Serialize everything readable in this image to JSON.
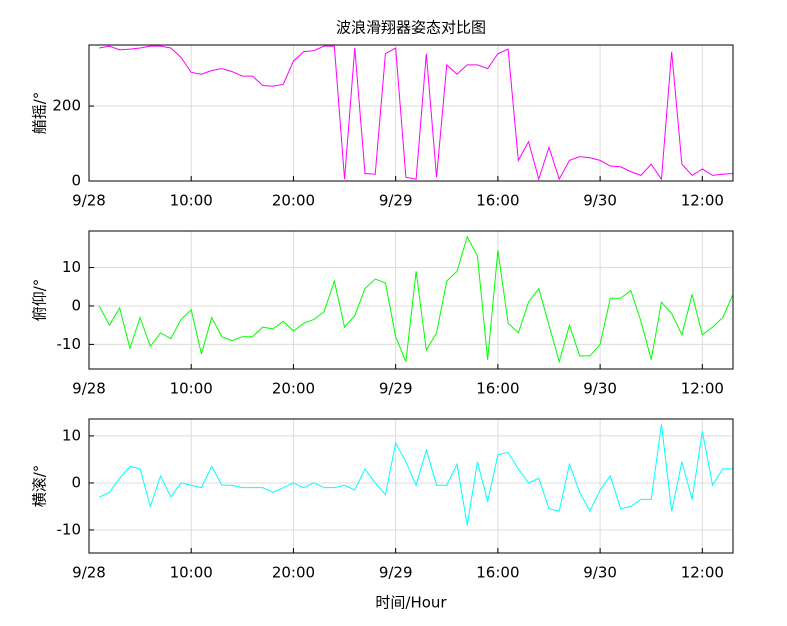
{
  "chart_data": [
    {
      "type": "line",
      "title": "波浪滑翔器姿态对比图",
      "ylabel": "艏摇/°",
      "color": "#ff00ff",
      "grid": true,
      "x": [
        1,
        2,
        3,
        4,
        5,
        6,
        7,
        8,
        9,
        10,
        11,
        12,
        13,
        14,
        15,
        16,
        17,
        18,
        19,
        20,
        21,
        22,
        23,
        24,
        25,
        26,
        27,
        28,
        29,
        30,
        31,
        32,
        33,
        34,
        35,
        36,
        37,
        38,
        39,
        40,
        41,
        42,
        43,
        44,
        45,
        46,
        47,
        48,
        49,
        50,
        51,
        52,
        53,
        54,
        55,
        56,
        57,
        58,
        59,
        60,
        61,
        62,
        63
      ],
      "values": [
        355,
        360,
        350,
        352,
        355,
        360,
        360,
        355,
        330,
        290,
        285,
        295,
        300,
        292,
        280,
        280,
        255,
        253,
        258,
        320,
        345,
        348,
        360,
        360,
        5,
        355,
        20,
        18,
        340,
        355,
        10,
        5,
        340,
        10,
        310,
        285,
        310,
        310,
        300,
        340,
        352,
        55,
        105,
        5,
        90,
        5,
        55,
        65,
        62,
        55,
        40,
        38,
        25,
        15,
        45,
        5,
        345,
        45,
        15,
        32,
        15,
        18,
        20
      ],
      "xlim": [
        0,
        63
      ],
      "xticks": [
        {
          "value": 0,
          "label": "9/28"
        },
        {
          "value": 10,
          "label": "10:00"
        },
        {
          "value": 20,
          "label": "20:00"
        },
        {
          "value": 30,
          "label": "9/29"
        },
        {
          "value": 40,
          "label": "16:00"
        },
        {
          "value": 50,
          "label": "9/30"
        },
        {
          "value": 60,
          "label": "12:00"
        }
      ],
      "ylim": [
        0,
        363
      ],
      "yticks": [
        0,
        200
      ]
    },
    {
      "type": "line",
      "ylabel": "俯仰/°",
      "color": "#00ff00",
      "grid": true,
      "x": [
        1,
        2,
        3,
        4,
        5,
        6,
        7,
        8,
        9,
        10,
        11,
        12,
        13,
        14,
        15,
        16,
        17,
        18,
        19,
        20,
        21,
        22,
        23,
        24,
        25,
        26,
        27,
        28,
        29,
        30,
        31,
        32,
        33,
        34,
        35,
        36,
        37,
        38,
        39,
        40,
        41,
        42,
        43,
        44,
        45,
        46,
        47,
        48,
        49,
        50,
        51,
        52,
        53,
        54,
        55,
        56,
        57,
        58,
        59,
        60,
        61,
        62,
        63
      ],
      "values": [
        0,
        -5,
        -0.5,
        -11,
        -3,
        -10.5,
        -7,
        -8.5,
        -3.5,
        -1,
        -12.5,
        -3,
        -8,
        -9,
        -8,
        -8,
        -5.5,
        -6,
        -4,
        -6.5,
        -4.5,
        -3.5,
        -1.5,
        6.5,
        -5.5,
        -2.5,
        4.5,
        7,
        6,
        -8,
        -14.5,
        9,
        -11.5,
        -7,
        6.5,
        9,
        18,
        13,
        -14,
        14.5,
        -4.5,
        -7,
        1,
        4.5,
        -5,
        -14.5,
        -5,
        -13,
        -13,
        -10,
        2,
        2,
        4,
        -4,
        -14,
        1,
        -2,
        -7.5,
        3,
        -7.5,
        -5.5,
        -3,
        3
      ],
      "xlim": [
        0,
        63
      ],
      "xticks": [
        {
          "value": 0,
          "label": "9/28"
        },
        {
          "value": 10,
          "label": "10:00"
        },
        {
          "value": 20,
          "label": "20:00"
        },
        {
          "value": 30,
          "label": "9/29"
        },
        {
          "value": 40,
          "label": "16:00"
        },
        {
          "value": 50,
          "label": "9/30"
        },
        {
          "value": 60,
          "label": "12:00"
        }
      ],
      "ylim": [
        -16.4,
        19.5
      ],
      "yticks": [
        -10,
        0,
        10
      ]
    },
    {
      "type": "line",
      "ylabel": "横滚/°",
      "xlabel": "时间/Hour",
      "color": "#00ffff",
      "grid": true,
      "x": [
        1,
        2,
        3,
        4,
        5,
        6,
        7,
        8,
        9,
        10,
        11,
        12,
        13,
        14,
        15,
        16,
        17,
        18,
        19,
        20,
        21,
        22,
        23,
        24,
        25,
        26,
        27,
        28,
        29,
        30,
        31,
        32,
        33,
        34,
        35,
        36,
        37,
        38,
        39,
        40,
        41,
        42,
        43,
        44,
        45,
        46,
        47,
        48,
        49,
        50,
        51,
        52,
        53,
        54,
        55,
        56,
        57,
        58,
        59,
        60,
        61,
        62,
        63
      ],
      "values": [
        -3,
        -2,
        1,
        3.5,
        3,
        -5,
        1.5,
        -3,
        0,
        -0.5,
        -1,
        3.5,
        -0.5,
        -0.5,
        -1,
        -1,
        -1,
        -2,
        -1,
        0,
        -1,
        0,
        -1,
        -1,
        -0.5,
        -1.5,
        3,
        0,
        -2.5,
        8.5,
        4.5,
        -0.5,
        7,
        -0.5,
        -0.5,
        4,
        -9,
        4.5,
        -4,
        6,
        6.5,
        3,
        0,
        1,
        -5.5,
        -6,
        4,
        -2,
        -6,
        -1.5,
        1.5,
        -5.5,
        -5,
        -3.5,
        -3.5,
        12.5,
        -6,
        4.5,
        -3.5,
        11,
        -0.5,
        3,
        3
      ],
      "xlim": [
        0,
        63
      ],
      "xticks": [
        {
          "value": 0,
          "label": "9/28"
        },
        {
          "value": 10,
          "label": "10:00"
        },
        {
          "value": 20,
          "label": "20:00"
        },
        {
          "value": 30,
          "label": "9/29"
        },
        {
          "value": 40,
          "label": "16:00"
        },
        {
          "value": 50,
          "label": "9/30"
        },
        {
          "value": 60,
          "label": "12:00"
        }
      ],
      "ylim": [
        -14.9,
        13.6
      ],
      "yticks": [
        -10,
        0,
        10
      ]
    }
  ]
}
